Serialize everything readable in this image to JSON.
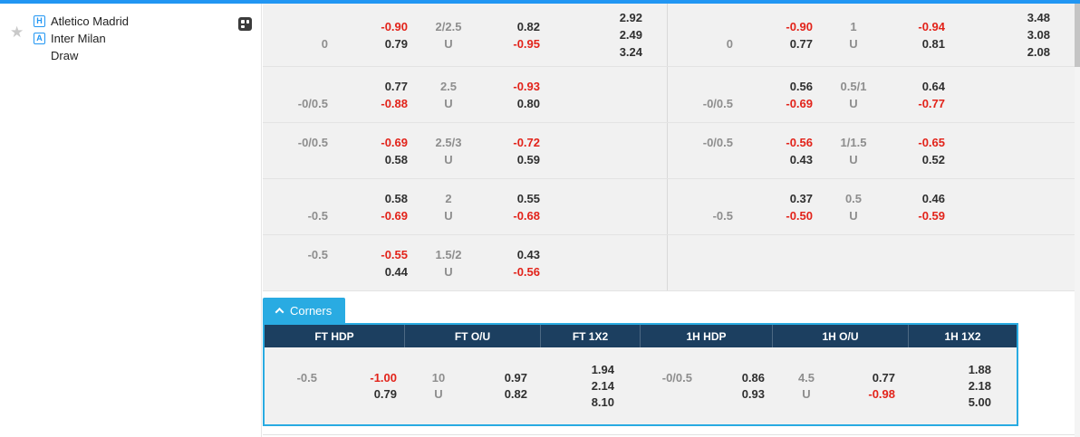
{
  "colors": {
    "accent_blue": "#2196f3",
    "badge_blue": "#2196f3",
    "corners_blue": "#29abe2",
    "header_navy": "#1c3f60",
    "neg_red": "#e2231a"
  },
  "sidebar": {
    "home": {
      "badge": "H",
      "name": "Atletico Madrid"
    },
    "away": {
      "badge": "A",
      "name": "Inter Milan"
    },
    "draw_label": "Draw"
  },
  "odds_table": {
    "u_label": "U",
    "rows": [
      {
        "ft": {
          "hdp_line": "0",
          "hdp_over": "-0.90",
          "hdp_under": "0.79",
          "ou_line": "2/2.5",
          "ou_over": "0.82",
          "ou_under": "-0.95",
          "x12": [
            "2.92",
            "2.49",
            "3.24"
          ]
        },
        "h1": {
          "hdp_line": "0",
          "hdp_over": "-0.90",
          "hdp_under": "0.77",
          "ou_line": "1",
          "ou_over": "-0.94",
          "ou_under": "0.81",
          "x12": [
            "3.48",
            "3.08",
            "2.08"
          ]
        }
      },
      {
        "ft": {
          "hdp_line": "-0/0.5",
          "hdp_over": "0.77",
          "hdp_under": "-0.88",
          "ou_line": "2.5",
          "ou_over": "-0.93",
          "ou_under": "0.80"
        },
        "h1": {
          "hdp_line": "-0/0.5",
          "hdp_over": "0.56",
          "hdp_under": "-0.69",
          "ou_line": "0.5/1",
          "ou_over": "0.64",
          "ou_under": "-0.77"
        }
      },
      {
        "ft": {
          "hdp_line": "-0/0.5",
          "hdp_over": "-0.69",
          "hdp_under": "0.58",
          "ou_line": "2.5/3",
          "ou_over": "-0.72",
          "ou_under": "0.59"
        },
        "h1": {
          "hdp_line": "-0/0.5",
          "hdp_over": "-0.56",
          "hdp_under": "0.43",
          "ou_line": "1/1.5",
          "ou_over": "-0.65",
          "ou_under": "0.52"
        }
      },
      {
        "ft": {
          "hdp_line": "-0.5",
          "hdp_over": "0.58",
          "hdp_under": "-0.69",
          "ou_line": "2",
          "ou_over": "0.55",
          "ou_under": "-0.68"
        },
        "h1": {
          "hdp_line": "-0.5",
          "hdp_over": "0.37",
          "hdp_under": "-0.50",
          "ou_line": "0.5",
          "ou_over": "0.46",
          "ou_under": "-0.59"
        }
      },
      {
        "ft": {
          "hdp_line": "-0.5",
          "hdp_over": "-0.55",
          "hdp_under": "0.44",
          "ou_line": "1.5/2",
          "ou_over": "0.43",
          "ou_under": "-0.56"
        }
      }
    ]
  },
  "corners": {
    "tab_label": "Corners",
    "headers": [
      "FT HDP",
      "FT O/U",
      "FT 1X2",
      "1H HDP",
      "1H O/U",
      "1H 1X2"
    ],
    "row": {
      "ft_hdp": {
        "line": "-0.5",
        "over": "-1.00",
        "under": "0.79"
      },
      "ft_ou": {
        "line": "10",
        "over": "0.97",
        "under": "0.82"
      },
      "ft_1x2": [
        "1.94",
        "2.14",
        "8.10"
      ],
      "h1_hdp": {
        "line": "-0/0.5",
        "over": "0.86",
        "under": "0.93"
      },
      "h1_ou": {
        "line": "4.5",
        "over": "0.77",
        "under": "-0.98"
      },
      "h1_1x2": [
        "1.88",
        "2.18",
        "5.00"
      ]
    }
  }
}
